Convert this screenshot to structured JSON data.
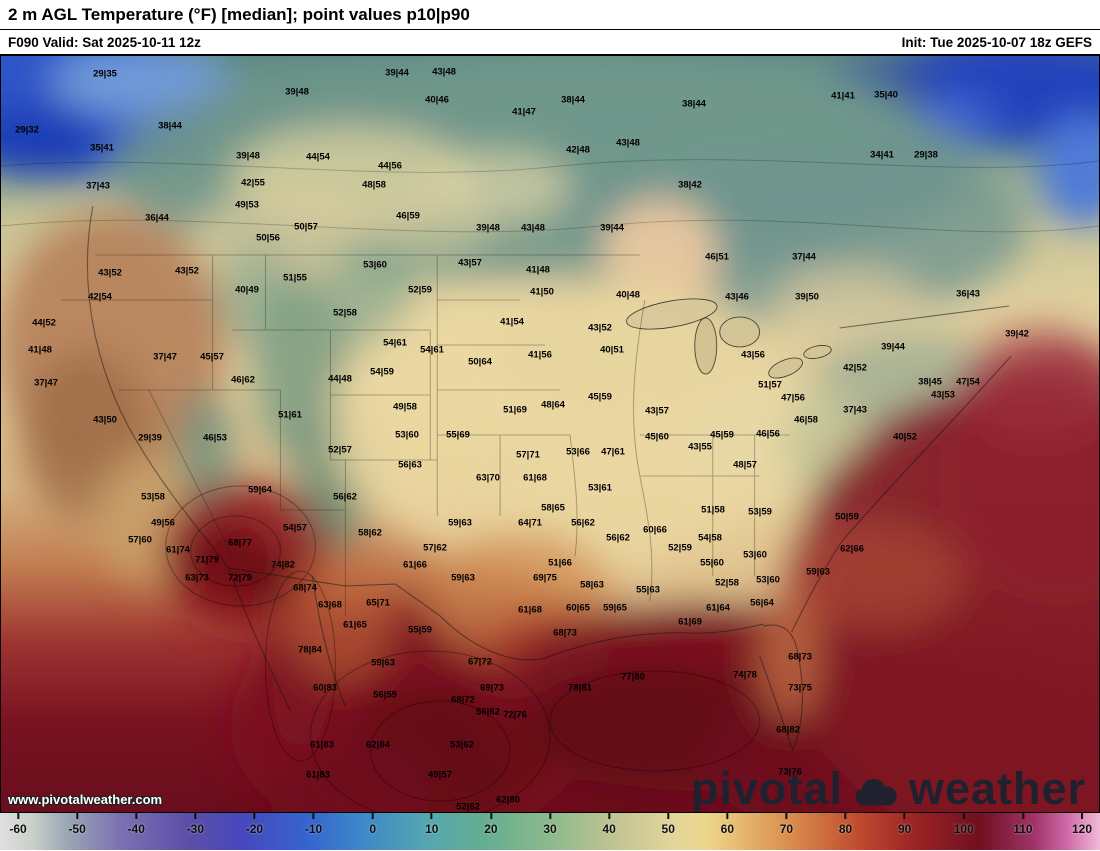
{
  "header": {
    "title": "2 m AGL Temperature (°F) [median]; point values p10|p90"
  },
  "subheader": {
    "left": "F090 Valid: Sat 2025-10-11 12z",
    "right": "Init: Tue 2025-10-07 18z GEFS"
  },
  "watermark": {
    "text": "www.pivotalweather.com"
  },
  "brand": {
    "left": "pivotal",
    "right": "weather"
  },
  "colorbar": {
    "unit": "°F",
    "ticks": [
      -60,
      -50,
      -40,
      -30,
      -20,
      -10,
      0,
      10,
      20,
      30,
      40,
      50,
      60,
      70,
      80,
      90,
      100,
      110,
      120
    ],
    "stops": [
      {
        "p": 0,
        "c": "#e0e0e0"
      },
      {
        "p": 3,
        "c": "#c9cfc9"
      },
      {
        "p": 6,
        "c": "#9aa8b4"
      },
      {
        "p": 11,
        "c": "#7d6fb2"
      },
      {
        "p": 17,
        "c": "#5c4fa8"
      },
      {
        "p": 22,
        "c": "#4748bc"
      },
      {
        "p": 28,
        "c": "#3565cf"
      },
      {
        "p": 33,
        "c": "#3e88c8"
      },
      {
        "p": 39,
        "c": "#55a8b0"
      },
      {
        "p": 44,
        "c": "#63ae90"
      },
      {
        "p": 50,
        "c": "#8cba8c"
      },
      {
        "p": 56,
        "c": "#c2c492"
      },
      {
        "p": 61,
        "c": "#e2d49a"
      },
      {
        "p": 64,
        "c": "#ecd88e"
      },
      {
        "p": 67,
        "c": "#e7bc72"
      },
      {
        "p": 72,
        "c": "#d98a4c"
      },
      {
        "p": 78,
        "c": "#c04c30"
      },
      {
        "p": 83,
        "c": "#9c2424"
      },
      {
        "p": 89,
        "c": "#701020"
      },
      {
        "p": 94,
        "c": "#a03368"
      },
      {
        "p": 97,
        "c": "#d06aa8"
      },
      {
        "p": 100,
        "c": "#f2b8d8"
      }
    ]
  },
  "map": {
    "description": "GEFS median 2 m temperature with p10|p90 point values",
    "points": [
      [
        "29|35",
        105,
        74
      ],
      [
        "39|48",
        297,
        92
      ],
      [
        "39|44",
        397,
        73
      ],
      [
        "43|48",
        444,
        72
      ],
      [
        "40|46",
        437,
        100
      ],
      [
        "41|47",
        524,
        112
      ],
      [
        "38|44",
        573,
        100
      ],
      [
        "38|44",
        694,
        104
      ],
      [
        "41|41",
        843,
        96
      ],
      [
        "35|40",
        886,
        95
      ],
      [
        "29|32",
        27,
        130
      ],
      [
        "38|44",
        170,
        126
      ],
      [
        "35|41",
        102,
        148
      ],
      [
        "39|48",
        248,
        156
      ],
      [
        "44|54",
        318,
        157
      ],
      [
        "44|56",
        390,
        166
      ],
      [
        "42|48",
        578,
        150
      ],
      [
        "43|48",
        628,
        143
      ],
      [
        "38|42",
        690,
        185
      ],
      [
        "34|41",
        882,
        155
      ],
      [
        "29|38",
        926,
        155
      ],
      [
        "37|43",
        98,
        186
      ],
      [
        "42|55",
        253,
        183
      ],
      [
        "48|58",
        374,
        185
      ],
      [
        "49|53",
        247,
        205
      ],
      [
        "46|59",
        408,
        216
      ],
      [
        "36|44",
        157,
        218
      ],
      [
        "50|57",
        306,
        227
      ],
      [
        "50|56",
        268,
        238
      ],
      [
        "39|48",
        488,
        228
      ],
      [
        "43|48",
        533,
        228
      ],
      [
        "39|44",
        612,
        228
      ],
      [
        "46|51",
        717,
        257
      ],
      [
        "37|44",
        804,
        257
      ],
      [
        "39|50",
        807,
        297
      ],
      [
        "40|48",
        628,
        295
      ],
      [
        "36|43",
        968,
        294
      ],
      [
        "39|42",
        1017,
        334
      ],
      [
        "43|52",
        110,
        273
      ],
      [
        "43|52",
        187,
        271
      ],
      [
        "42|54",
        100,
        297
      ],
      [
        "40|49",
        247,
        290
      ],
      [
        "51|55",
        295,
        278
      ],
      [
        "53|60",
        375,
        265
      ],
      [
        "43|57",
        470,
        263
      ],
      [
        "52|59",
        420,
        290
      ],
      [
        "52|58",
        345,
        313
      ],
      [
        "41|48",
        538,
        270
      ],
      [
        "41|50",
        542,
        292
      ],
      [
        "41|54",
        512,
        322
      ],
      [
        "44|52",
        44,
        323
      ],
      [
        "41|48",
        40,
        350
      ],
      [
        "37|47",
        46,
        383
      ],
      [
        "37|47",
        165,
        357
      ],
      [
        "45|57",
        212,
        357
      ],
      [
        "46|62",
        243,
        380
      ],
      [
        "54|61",
        395,
        343
      ],
      [
        "54|61",
        432,
        350
      ],
      [
        "44|48",
        340,
        379
      ],
      [
        "54|59",
        382,
        372
      ],
      [
        "50|64",
        480,
        362
      ],
      [
        "41|56",
        540,
        355
      ],
      [
        "43|52",
        600,
        328
      ],
      [
        "40|51",
        612,
        350
      ],
      [
        "48|64",
        553,
        405
      ],
      [
        "45|59",
        600,
        397
      ],
      [
        "43|57",
        657,
        411
      ],
      [
        "45|60",
        657,
        437
      ],
      [
        "45|59",
        722,
        435
      ],
      [
        "46|56",
        768,
        434
      ],
      [
        "43|56",
        753,
        355
      ],
      [
        "42|52",
        855,
        368
      ],
      [
        "43|46",
        737,
        297
      ],
      [
        "39|44",
        893,
        347
      ],
      [
        "38|45",
        930,
        382
      ],
      [
        "43|53",
        943,
        395
      ],
      [
        "37|43",
        855,
        410
      ],
      [
        "47|54",
        968,
        382
      ],
      [
        "40|52",
        905,
        437
      ],
      [
        "51|57",
        770,
        385
      ],
      [
        "47|56",
        793,
        398
      ],
      [
        "46|58",
        806,
        420
      ],
      [
        "43|55",
        700,
        447
      ],
      [
        "48|57",
        745,
        465
      ],
      [
        "51|61",
        290,
        415
      ],
      [
        "49|58",
        405,
        407
      ],
      [
        "51|69",
        515,
        410
      ],
      [
        "43|50",
        105,
        420
      ],
      [
        "29|39",
        150,
        438
      ],
      [
        "46|53",
        215,
        438
      ],
      [
        "53|60",
        407,
        435
      ],
      [
        "55|69",
        458,
        435
      ],
      [
        "52|57",
        340,
        450
      ],
      [
        "57|71",
        528,
        455
      ],
      [
        "56|63",
        410,
        465
      ],
      [
        "63|70",
        488,
        478
      ],
      [
        "61|68",
        535,
        478
      ],
      [
        "53|66",
        578,
        452
      ],
      [
        "47|61",
        613,
        452
      ],
      [
        "53|61",
        600,
        488
      ],
      [
        "59|64",
        260,
        490
      ],
      [
        "53|58",
        153,
        497
      ],
      [
        "56|62",
        345,
        497
      ],
      [
        "54|57",
        295,
        528
      ],
      [
        "49|56",
        163,
        523
      ],
      [
        "57|60",
        140,
        540
      ],
      [
        "61|74",
        178,
        550
      ],
      [
        "71|79",
        207,
        560
      ],
      [
        "68|77",
        240,
        543
      ],
      [
        "74|82",
        283,
        565
      ],
      [
        "63|73",
        197,
        578
      ],
      [
        "72|79",
        240,
        578
      ],
      [
        "68|74",
        305,
        588
      ],
      [
        "63|68",
        330,
        605
      ],
      [
        "65|71",
        378,
        603
      ],
      [
        "61|65",
        355,
        625
      ],
      [
        "58|62",
        370,
        533
      ],
      [
        "61|66",
        415,
        565
      ],
      [
        "57|62",
        435,
        548
      ],
      [
        "59|63",
        460,
        523
      ],
      [
        "64|71",
        530,
        523
      ],
      [
        "51|66",
        560,
        563
      ],
      [
        "69|75",
        545,
        578
      ],
      [
        "58|65",
        553,
        508
      ],
      [
        "56|62",
        583,
        523
      ],
      [
        "56|62",
        618,
        538
      ],
      [
        "60|66",
        655,
        530
      ],
      [
        "55|63",
        648,
        590
      ],
      [
        "52|59",
        680,
        548
      ],
      [
        "51|58",
        713,
        510
      ],
      [
        "53|59",
        760,
        512
      ],
      [
        "50|59",
        847,
        517
      ],
      [
        "54|58",
        710,
        538
      ],
      [
        "55|60",
        712,
        563
      ],
      [
        "53|60",
        755,
        555
      ],
      [
        "53|60",
        768,
        580
      ],
      [
        "52|58",
        727,
        583
      ],
      [
        "59|63",
        818,
        572
      ],
      [
        "62|66",
        852,
        549
      ],
      [
        "56|64",
        762,
        603
      ],
      [
        "61|64",
        718,
        608
      ],
      [
        "61|69",
        690,
        622
      ],
      [
        "58|63",
        592,
        585
      ],
      [
        "59|63",
        463,
        578
      ],
      [
        "61|68",
        530,
        610
      ],
      [
        "60|65",
        578,
        608
      ],
      [
        "59|65",
        615,
        608
      ],
      [
        "68|73",
        565,
        633
      ],
      [
        "55|59",
        420,
        630
      ],
      [
        "59|63",
        383,
        663
      ],
      [
        "56|59",
        385,
        695
      ],
      [
        "67|72",
        480,
        662
      ],
      [
        "69|73",
        492,
        688
      ],
      [
        "68|72",
        463,
        700
      ],
      [
        "72|76",
        515,
        715
      ],
      [
        "78|84",
        310,
        650
      ],
      [
        "60|83",
        325,
        688
      ],
      [
        "61|83",
        322,
        745
      ],
      [
        "62|84",
        378,
        745
      ],
      [
        "61|83",
        318,
        775
      ],
      [
        "49|57",
        440,
        775
      ],
      [
        "53|62",
        462,
        745
      ],
      [
        "56|62",
        488,
        712
      ],
      [
        "52|62",
        468,
        807
      ],
      [
        "62|80",
        508,
        800
      ],
      [
        "77|80",
        633,
        677
      ],
      [
        "78|81",
        580,
        688
      ],
      [
        "74|78",
        745,
        675
      ],
      [
        "68|73",
        800,
        657
      ],
      [
        "73|75",
        800,
        688
      ],
      [
        "68|82",
        788,
        730
      ],
      [
        "73|76",
        790,
        772
      ]
    ]
  }
}
